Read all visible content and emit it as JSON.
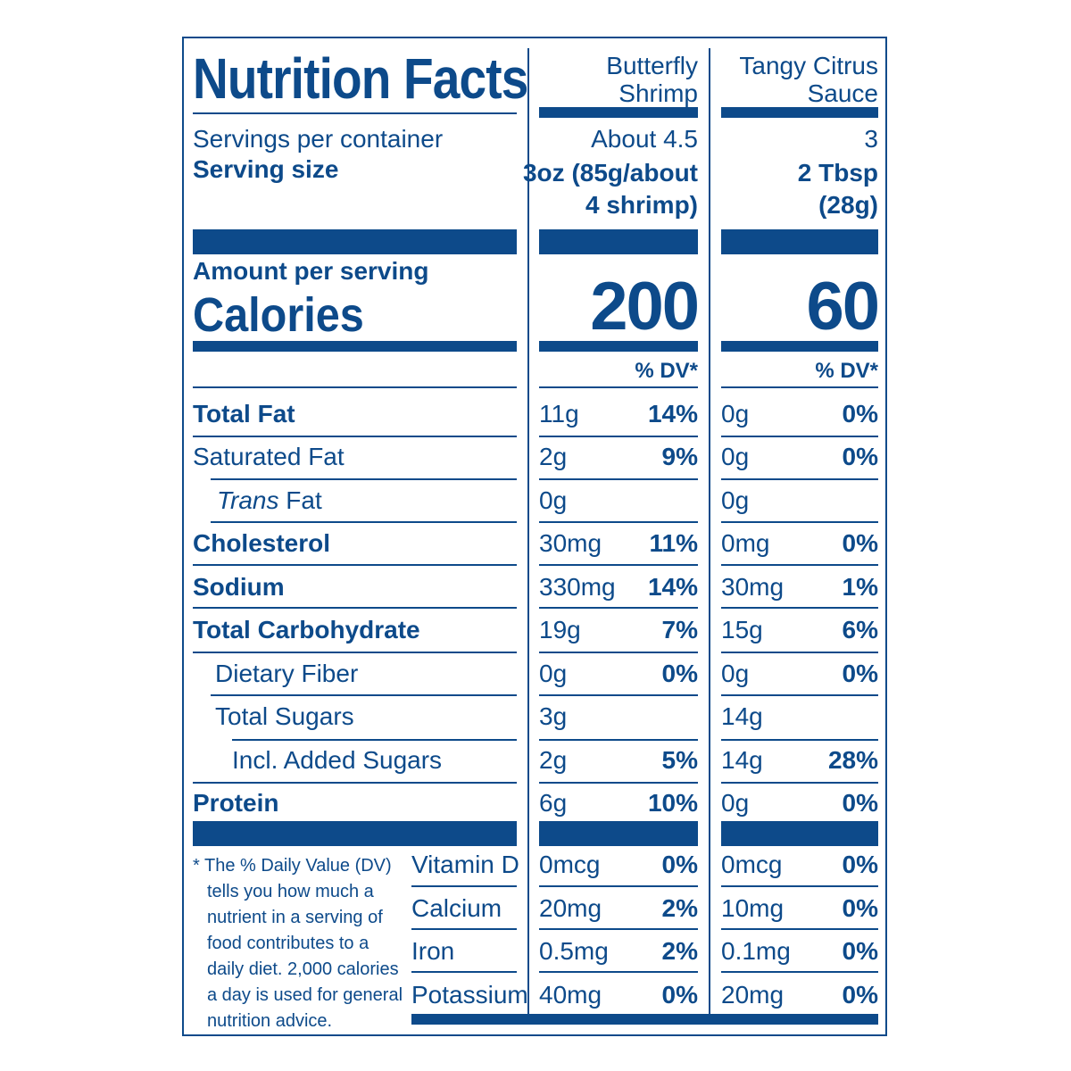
{
  "title": "Nutrition Facts",
  "columns": [
    {
      "name": "Butterfly Shrimp",
      "name_line1": "Butterfly",
      "name_line2": "Shrimp",
      "servings": "About 4.5",
      "serving_size_line1": "3oz (85g/about",
      "serving_size_line2": "4 shrimp)",
      "calories": "200",
      "dv_header": "% DV*"
    },
    {
      "name": "Tangy Citrus Sauce",
      "name_line1": "Tangy Citrus",
      "name_line2": "Sauce",
      "servings": "3",
      "serving_size_line1": "2 Tbsp",
      "serving_size_line2": "(28g)",
      "calories": "60",
      "dv_header": "% DV*"
    }
  ],
  "labels": {
    "servings_per_container": "Servings per container",
    "serving_size": "Serving size",
    "amount_per_serving": "Amount per serving",
    "calories": "Calories"
  },
  "nutrients": [
    {
      "label": "Total Fat",
      "amount1": "11g",
      "dv1": "14%",
      "amount2": "0g",
      "dv2": "0%"
    },
    {
      "label": "Saturated Fat",
      "amount1": "2g",
      "dv1": "9%",
      "amount2": "0g",
      "dv2": "0%"
    },
    {
      "label_italic": "Trans",
      "label": "Fat",
      "amount1": "0g",
      "amount2": "0g"
    },
    {
      "label": "Cholesterol",
      "amount1": "30mg",
      "dv1": "11%",
      "amount2": "0mg",
      "dv2": "0%"
    },
    {
      "label": "Sodium",
      "amount1": "330mg",
      "dv1": "14%",
      "amount2": "30mg",
      "dv2": "1%"
    },
    {
      "label": "Total Carbohydrate",
      "amount1": "19g",
      "dv1": "7%",
      "amount2": "15g",
      "dv2": "6%"
    },
    {
      "label": "Dietary Fiber",
      "amount1": "0g",
      "dv1": "0%",
      "amount2": "0g",
      "dv2": "0%"
    },
    {
      "label": "Total Sugars",
      "amount1": "3g",
      "amount2": "14g"
    },
    {
      "label": "Incl. Added Sugars",
      "amount1": "2g",
      "dv1": "5%",
      "amount2": "14g",
      "dv2": "28%"
    },
    {
      "label": "Protein",
      "amount1": "6g",
      "dv1": "10%",
      "amount2": "0g",
      "dv2": "0%"
    }
  ],
  "vitamins": [
    {
      "label": "Vitamin D",
      "amount1": "0mcg",
      "dv1": "0%",
      "amount2": "0mcg",
      "dv2": "0%"
    },
    {
      "label": "Calcium",
      "amount1": "20mg",
      "dv1": "2%",
      "amount2": "10mg",
      "dv2": "0%"
    },
    {
      "label": "Iron",
      "amount1": "0.5mg",
      "dv1": "2%",
      "amount2": "0.1mg",
      "dv2": "0%"
    },
    {
      "label": "Potassium",
      "amount1": "40mg",
      "dv1": "0%",
      "amount2": "20mg",
      "dv2": "0%"
    }
  ],
  "footnote": [
    "* The % Daily Value (DV)",
    "tells you how much a",
    "nutrient in a serving of",
    "food contributes to a",
    "daily diet. 2,000 calories",
    "a day is used for general",
    "nutrition advice."
  ],
  "colors": {
    "ink": "#0d4a8a",
    "background": "#ffffff"
  }
}
